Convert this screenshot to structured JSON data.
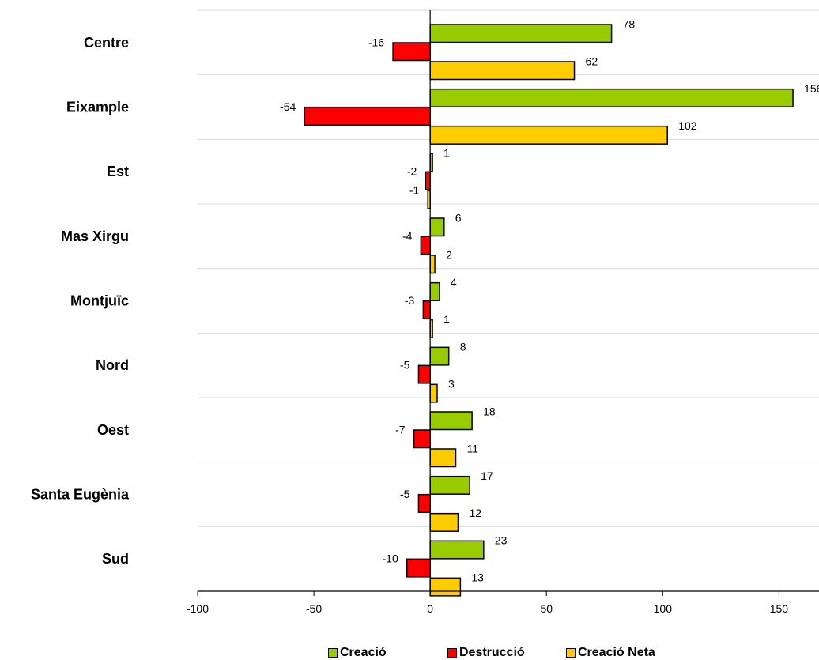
{
  "chart_data": {
    "type": "bar",
    "orientation": "horizontal",
    "categories": [
      "Centre",
      "Eixample",
      "Est",
      "Mas Xirgu",
      "Montjuïc",
      "Nord",
      "Oest",
      "Santa Eugènia",
      "Sud"
    ],
    "series": [
      {
        "name": "Creació",
        "color": "#99CC00",
        "values": [
          78,
          156,
          1,
          6,
          4,
          8,
          18,
          17,
          23
        ]
      },
      {
        "name": "Destrucció",
        "color": "#FF0000",
        "values": [
          -16,
          -54,
          -2,
          -4,
          -3,
          -5,
          -7,
          -5,
          -10
        ]
      },
      {
        "name": "Creació Neta",
        "color": "#FFCC00",
        "values": [
          62,
          102,
          -1,
          2,
          1,
          3,
          11,
          12,
          13
        ]
      }
    ],
    "xlim": [
      -100,
      150
    ],
    "xticks": [
      -100,
      -50,
      0,
      50,
      100,
      150
    ],
    "data_labels": true,
    "grid": "horizontal separators between categories",
    "legend_position": "bottom"
  }
}
